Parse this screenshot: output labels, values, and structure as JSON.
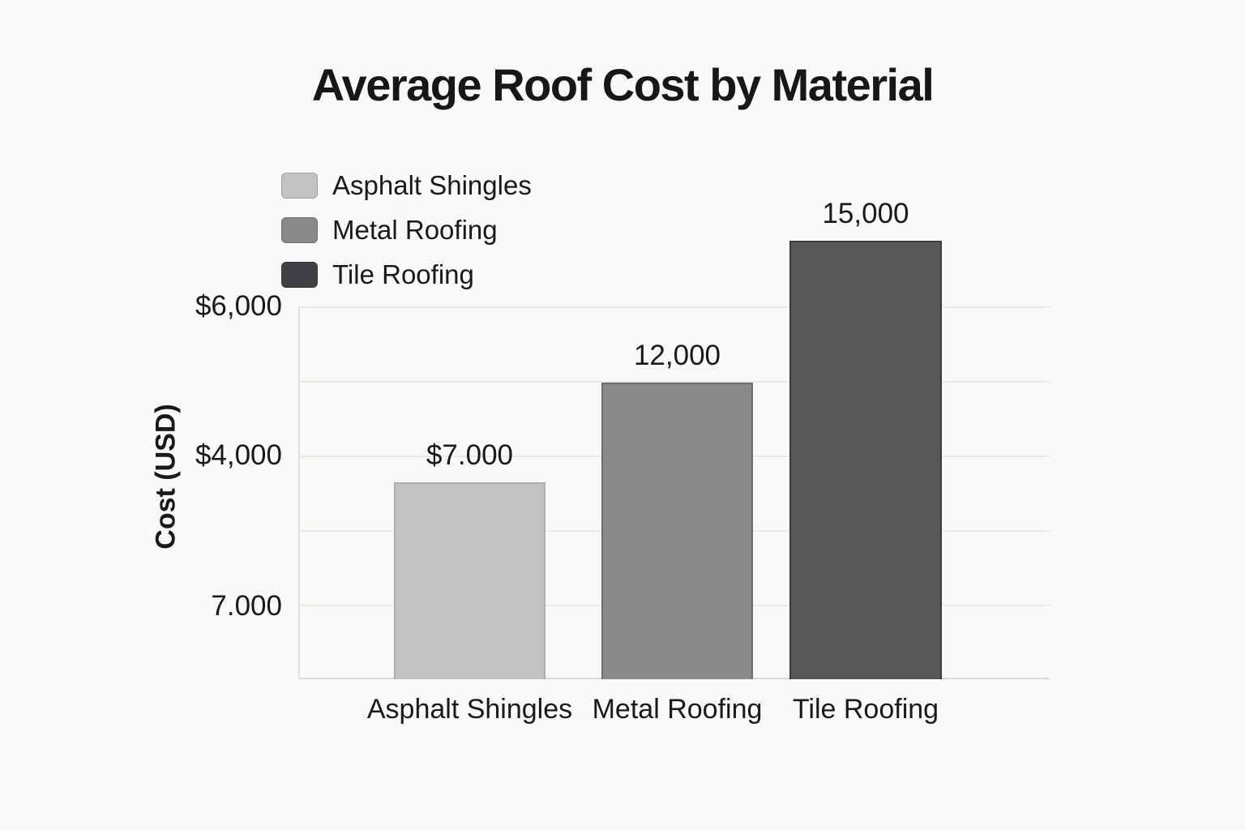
{
  "title": "Average Roof Cost by Material",
  "legend": {
    "items": [
      {
        "label": "Asphalt Shingles",
        "swatch_color": "#c4c2c0"
      },
      {
        "label": "Metal Roofing",
        "swatch_color": "#8a8987"
      },
      {
        "label": "Tile Roofing",
        "swatch_color": "#404145"
      }
    ]
  },
  "y_axis": {
    "title": "Cost (USD)",
    "ticks": [
      "$6,000",
      "$4,000",
      "7.000"
    ]
  },
  "x_axis": {
    "ticks": [
      "Asphalt Shingles",
      "Metal Roofing",
      "Tile Roofing"
    ]
  },
  "chart_data": {
    "type": "bar",
    "title": "Average Roof Cost by Material",
    "xlabel": "",
    "ylabel": "Cost (USD)",
    "categories": [
      "Asphalt Shingles",
      "Metal Roofing",
      "Tile Roofing"
    ],
    "values": [
      7000,
      12000,
      15000
    ],
    "value_labels": [
      "$7.000",
      "12,000",
      "15,000"
    ],
    "bar_colors": [
      "#c4c2c0",
      "#8a8987",
      "#58585a"
    ],
    "bar_border_colors": [
      "#afadab",
      "#6f6e6c",
      "#3b3b3d"
    ],
    "y_tick_labels": [
      "$6,000",
      "$4,000",
      "7.000"
    ],
    "legend_entries": [
      "Asphalt Shingles",
      "Metal Roofing",
      "Tile Roofing"
    ],
    "legend_position": "upper left",
    "grid": true,
    "background_color": "#faf9f7",
    "text_color": "#17191d"
  }
}
